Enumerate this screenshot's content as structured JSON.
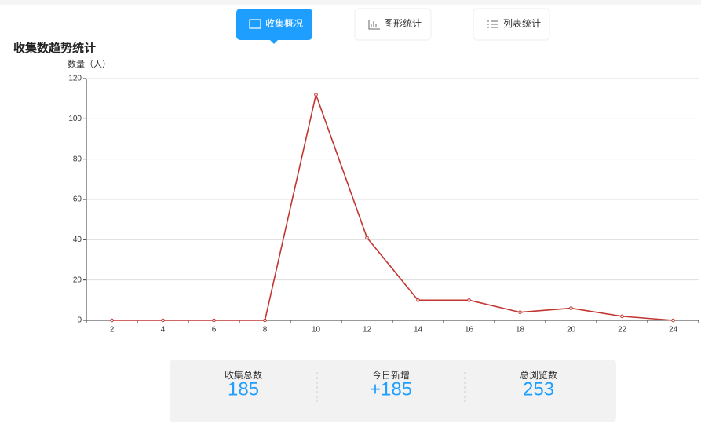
{
  "tabs": [
    "收集概况",
    "图形统计",
    "列表统计"
  ],
  "stats": [
    {
      "label": "收集总数",
      "value": "185"
    },
    {
      "label": "今日新增",
      "value": "+185"
    },
    {
      "label": "总浏览数",
      "value": "253"
    }
  ],
  "chart_data": {
    "type": "line",
    "title": "收集数趋势统计",
    "y_label": "数量（人）",
    "categories": [
      "2",
      "4",
      "6",
      "8",
      "10",
      "12",
      "14",
      "16",
      "18",
      "20",
      "22",
      "24"
    ],
    "values": [
      0,
      0,
      0,
      0,
      112,
      41,
      10,
      10,
      4,
      6,
      2,
      0
    ],
    "color": "#c23531",
    "ylim": [
      0,
      120
    ],
    "yticks": [
      0,
      20,
      40,
      60,
      80,
      100,
      120
    ],
    "grid": true
  }
}
